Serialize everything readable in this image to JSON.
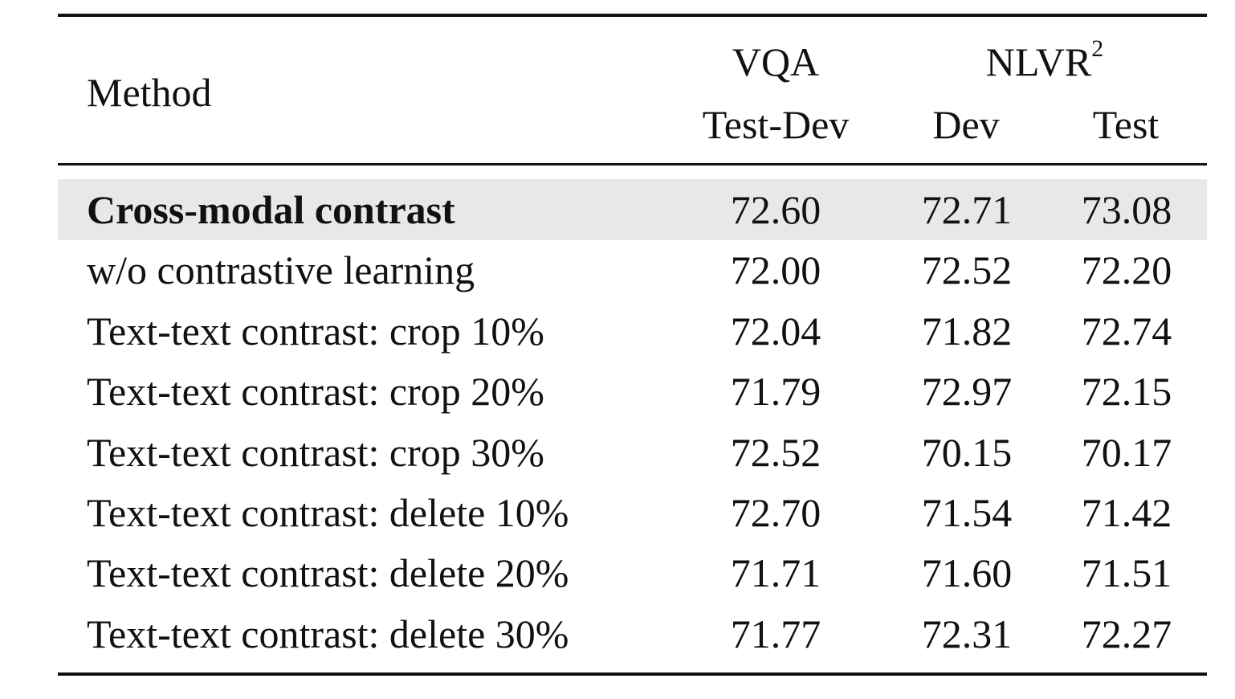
{
  "header": {
    "method": "Method",
    "vqa": "VQA",
    "nlvr": "NLVR",
    "nlvr_sup": "2",
    "vqa_sub": "Test-Dev",
    "nlvr_dev": "Dev",
    "nlvr_test": "Test"
  },
  "rows": [
    {
      "method": "Cross-modal contrast",
      "vqa_testdev": "72.60",
      "nlvr_dev": "72.71",
      "nlvr_test": "73.08",
      "highlighted": true,
      "bold": true
    },
    {
      "method": "w/o contrastive learning",
      "vqa_testdev": "72.00",
      "nlvr_dev": "72.52",
      "nlvr_test": "72.20"
    },
    {
      "method": "Text-text contrast: crop 10%",
      "vqa_testdev": "72.04",
      "nlvr_dev": "71.82",
      "nlvr_test": "72.74"
    },
    {
      "method": "Text-text contrast: crop 20%",
      "vqa_testdev": "71.79",
      "nlvr_dev": "72.97",
      "nlvr_test": "72.15"
    },
    {
      "method": "Text-text contrast: crop 30%",
      "vqa_testdev": "72.52",
      "nlvr_dev": "70.15",
      "nlvr_test": "70.17"
    },
    {
      "method": "Text-text contrast: delete 10%",
      "vqa_testdev": "72.70",
      "nlvr_dev": "71.54",
      "nlvr_test": "71.42"
    },
    {
      "method": "Text-text contrast: delete 20%",
      "vqa_testdev": "71.71",
      "nlvr_dev": "71.60",
      "nlvr_test": "71.51"
    },
    {
      "method": "Text-text contrast: delete 30%",
      "vqa_testdev": "71.77",
      "nlvr_dev": "72.31",
      "nlvr_test": "72.27"
    }
  ],
  "colors": {
    "highlight_row": "#e8e8e8",
    "text": "#111111",
    "rule": "#111111"
  }
}
